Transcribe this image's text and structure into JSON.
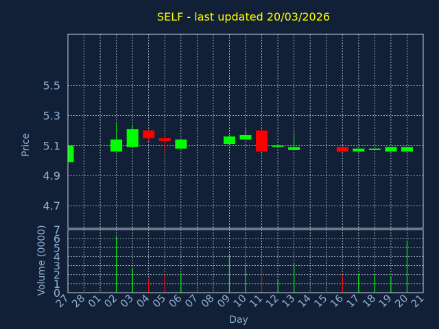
{
  "chart_data": {
    "type": "candlestick",
    "title": "SELF - last updated 20/03/2026",
    "xlabel": "Day",
    "price_panel": {
      "ylabel": "Price",
      "ylim": [
        4.55,
        5.84
      ],
      "yticks": [
        4.7,
        4.9,
        5.1,
        5.3,
        5.5
      ],
      "ytick_labels": [
        "4.7",
        "4.9",
        "5.1",
        "5.3",
        "5.5"
      ],
      "grid": true
    },
    "volume_panel": {
      "ylabel": "Volume (0000)",
      "ylim": [
        0,
        7
      ],
      "yticks": [
        0,
        1,
        2,
        3,
        4,
        5,
        6,
        7
      ],
      "ytick_labels": [
        "0",
        "1",
        "2",
        "3",
        "4",
        "5",
        "6",
        "7"
      ],
      "grid": true
    },
    "categories": [
      "27",
      "28",
      "01",
      "02",
      "03",
      "04",
      "05",
      "06",
      "07",
      "08",
      "09",
      "10",
      "11",
      "12",
      "13",
      "14",
      "15",
      "16",
      "17",
      "18",
      "19",
      "20",
      "21"
    ],
    "candles": [
      {
        "day": "27",
        "open": 4.99,
        "close": 5.1,
        "high": 5.1,
        "low": 4.99,
        "volume": 0
      },
      {
        "day": "02",
        "open": 5.06,
        "close": 5.14,
        "high": 5.25,
        "low": 5.06,
        "volume": 6.2
      },
      {
        "day": "03",
        "open": 5.09,
        "close": 5.21,
        "high": 5.24,
        "low": 5.09,
        "volume": 2.7
      },
      {
        "day": "04",
        "open": 5.2,
        "close": 5.15,
        "high": 5.2,
        "low": 5.13,
        "volume": 1.5
      },
      {
        "day": "05",
        "open": 5.15,
        "close": 5.13,
        "high": 5.17,
        "low": 5.05,
        "volume": 2.0
      },
      {
        "day": "06",
        "open": 5.08,
        "close": 5.14,
        "high": 5.14,
        "low": 5.08,
        "volume": 2.2
      },
      {
        "day": "09",
        "open": 5.11,
        "close": 5.16,
        "high": 5.17,
        "low": 5.11,
        "volume": 4.1
      },
      {
        "day": "10",
        "open": 5.14,
        "close": 5.17,
        "high": 5.21,
        "low": 5.14,
        "volume": 3.1
      },
      {
        "day": "11",
        "open": 5.2,
        "close": 5.06,
        "high": 5.2,
        "low": 5.06,
        "volume": 3.0
      },
      {
        "day": "12",
        "open": 5.1,
        "close": 5.1,
        "high": 5.1,
        "low": 5.1,
        "volume": 1.4
      },
      {
        "day": "13",
        "open": 5.07,
        "close": 5.09,
        "high": 5.19,
        "low": 5.07,
        "volume": 3.3
      },
      {
        "day": "16",
        "open": 5.09,
        "close": 5.06,
        "high": 5.09,
        "low": 5.06,
        "volume": 2.0
      },
      {
        "day": "17",
        "open": 5.06,
        "close": 5.08,
        "high": 5.08,
        "low": 5.06,
        "volume": 2.0
      },
      {
        "day": "18",
        "open": 5.07,
        "close": 5.08,
        "high": 5.08,
        "low": 5.07,
        "volume": 2.0
      },
      {
        "day": "19",
        "open": 5.06,
        "close": 5.09,
        "high": 5.09,
        "low": 5.06,
        "volume": 1.8
      },
      {
        "day": "20",
        "open": 5.06,
        "close": 5.09,
        "high": 5.09,
        "low": 5.06,
        "volume": 5.8
      }
    ],
    "colors": {
      "up": "#00ff00",
      "down": "#ff0000",
      "title": "#ffff00",
      "axis_text": "#8fb0d6",
      "grid": "#c8d2de",
      "background": "#112036"
    }
  }
}
